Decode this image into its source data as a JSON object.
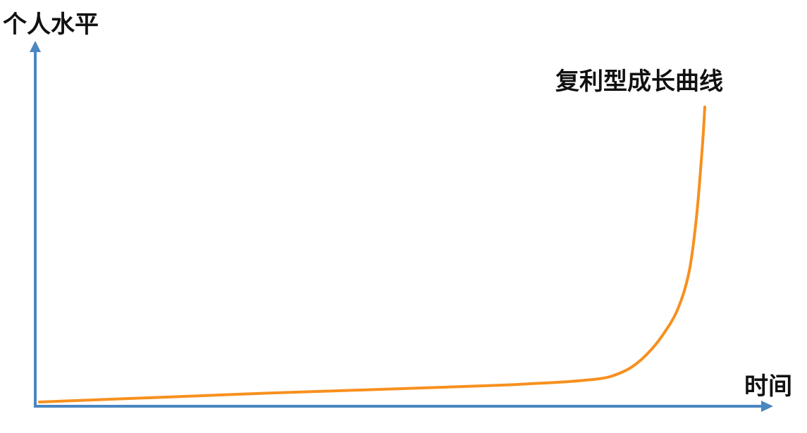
{
  "chart_data": {
    "type": "line",
    "ylabel": "个人水平",
    "xlabel": "时间",
    "grid": false,
    "legend": "none",
    "axis_color": "#4a86c0",
    "series": [
      {
        "name": "复利型成长曲线",
        "color": "#f7901e",
        "points": [
          [
            0,
            0.0
          ],
          [
            5,
            0.4
          ],
          [
            10,
            0.8
          ],
          [
            20,
            1.6
          ],
          [
            30,
            2.4
          ],
          [
            40,
            3.1
          ],
          [
            50,
            3.8
          ],
          [
            60,
            4.5
          ],
          [
            65,
            5.0
          ],
          [
            70,
            5.6
          ],
          [
            74,
            6.4
          ],
          [
            76,
            7.5
          ],
          [
            78,
            9.5
          ],
          [
            80,
            13.0
          ],
          [
            82,
            18.0
          ],
          [
            84,
            25.0
          ],
          [
            85.5,
            35.0
          ],
          [
            86.5,
            50.0
          ],
          [
            87.3,
            70.0
          ],
          [
            87.6,
            80.0
          ]
        ]
      }
    ],
    "xlim": [
      0,
      100
    ],
    "ylim": [
      0,
      100
    ]
  }
}
